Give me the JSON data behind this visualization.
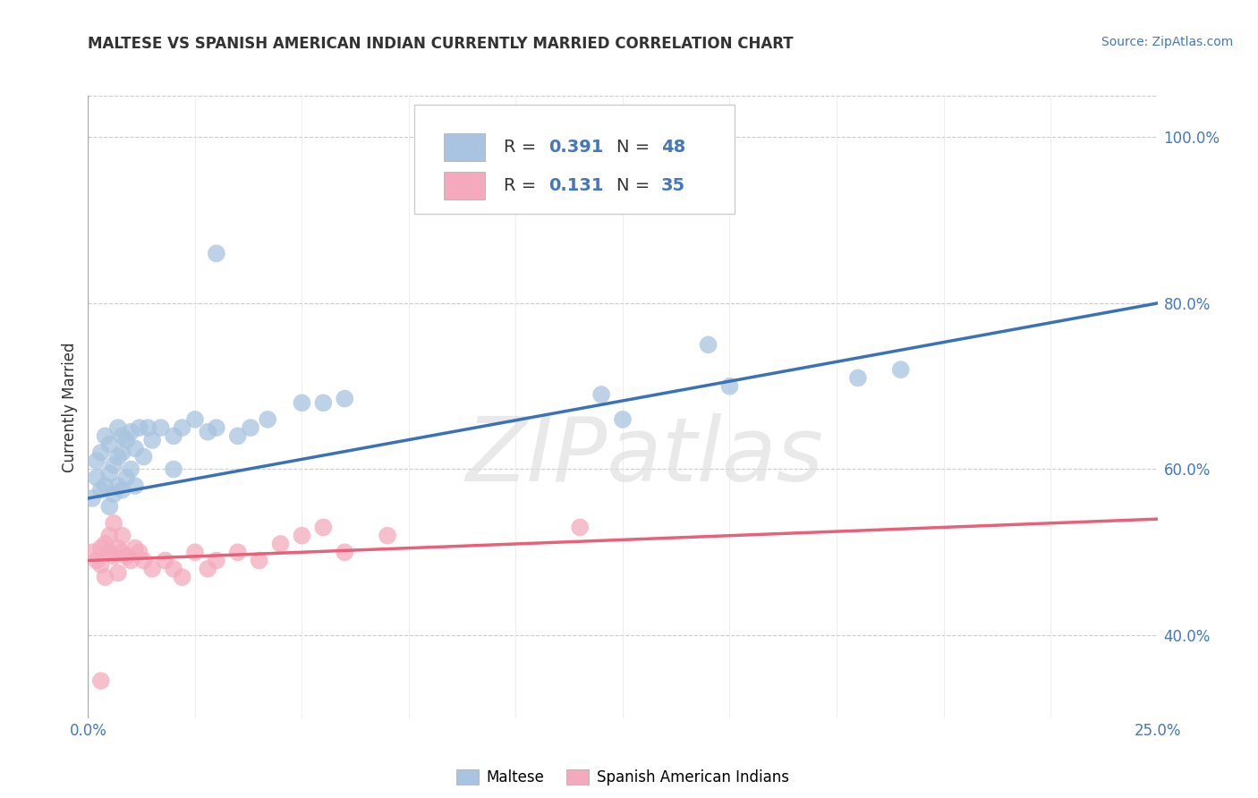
{
  "title": "MALTESE VS SPANISH AMERICAN INDIAN CURRENTLY MARRIED CORRELATION CHART",
  "source_text": "Source: ZipAtlas.com",
  "ylabel": "Currently Married",
  "xlim": [
    0.0,
    0.25
  ],
  "ylim": [
    0.3,
    1.05
  ],
  "xticklabels": [
    "0.0%",
    "25.0%"
  ],
  "ytick_positions": [
    0.4,
    0.6,
    0.8,
    1.0
  ],
  "ytick_labels": [
    "40.0%",
    "60.0%",
    "80.0%",
    "100.0%"
  ],
  "blue_color": "#A8C4E0",
  "pink_color": "#F4AABC",
  "blue_line_color": "#3A72B5",
  "pink_line_color": "#E8607A",
  "legend_R_blue": "0.391",
  "legend_N_blue": "48",
  "legend_R_pink": "0.131",
  "legend_N_pink": "35",
  "watermark": "ZIPatlas",
  "legend1_label": "Maltese",
  "legend2_label": "Spanish American Indians",
  "blue_scatter_x": [
    0.001,
    0.002,
    0.002,
    0.003,
    0.003,
    0.004,
    0.004,
    0.005,
    0.005,
    0.005,
    0.006,
    0.006,
    0.007,
    0.007,
    0.007,
    0.008,
    0.008,
    0.009,
    0.009,
    0.01,
    0.01,
    0.011,
    0.011,
    0.012,
    0.013,
    0.014,
    0.015,
    0.017,
    0.02,
    0.022,
    0.025,
    0.03,
    0.035,
    0.038,
    0.042,
    0.05,
    0.055,
    0.06,
    0.12,
    0.15,
    0.18,
    0.19,
    0.145,
    0.125,
    0.03,
    0.028,
    0.02,
    0.008
  ],
  "blue_scatter_y": [
    0.565,
    0.59,
    0.61,
    0.575,
    0.62,
    0.58,
    0.64,
    0.555,
    0.595,
    0.63,
    0.57,
    0.605,
    0.58,
    0.615,
    0.65,
    0.575,
    0.62,
    0.59,
    0.635,
    0.6,
    0.645,
    0.58,
    0.625,
    0.65,
    0.615,
    0.65,
    0.635,
    0.65,
    0.64,
    0.65,
    0.66,
    0.65,
    0.64,
    0.65,
    0.66,
    0.68,
    0.68,
    0.685,
    0.69,
    0.7,
    0.71,
    0.72,
    0.75,
    0.66,
    0.86,
    0.645,
    0.6,
    0.64
  ],
  "blue_trend_x": [
    0.0,
    0.25
  ],
  "blue_trend_y": [
    0.565,
    0.8
  ],
  "pink_scatter_x": [
    0.001,
    0.002,
    0.003,
    0.003,
    0.004,
    0.004,
    0.005,
    0.005,
    0.006,
    0.006,
    0.007,
    0.007,
    0.008,
    0.008,
    0.009,
    0.01,
    0.011,
    0.012,
    0.013,
    0.015,
    0.018,
    0.02,
    0.022,
    0.025,
    0.028,
    0.03,
    0.035,
    0.04,
    0.045,
    0.05,
    0.055,
    0.06,
    0.07,
    0.115,
    0.003
  ],
  "pink_scatter_y": [
    0.5,
    0.49,
    0.505,
    0.485,
    0.51,
    0.47,
    0.5,
    0.52,
    0.495,
    0.535,
    0.505,
    0.475,
    0.5,
    0.52,
    0.495,
    0.49,
    0.505,
    0.5,
    0.49,
    0.48,
    0.49,
    0.48,
    0.47,
    0.5,
    0.48,
    0.49,
    0.5,
    0.49,
    0.51,
    0.52,
    0.53,
    0.5,
    0.52,
    0.53,
    0.345
  ],
  "pink_trend_x": [
    0.0,
    0.25
  ],
  "pink_trend_y": [
    0.49,
    0.54
  ],
  "background_color": "#FFFFFF",
  "grid_color": "#CCCCCC",
  "accent_color": "#4477BB",
  "text_color": "#333333"
}
